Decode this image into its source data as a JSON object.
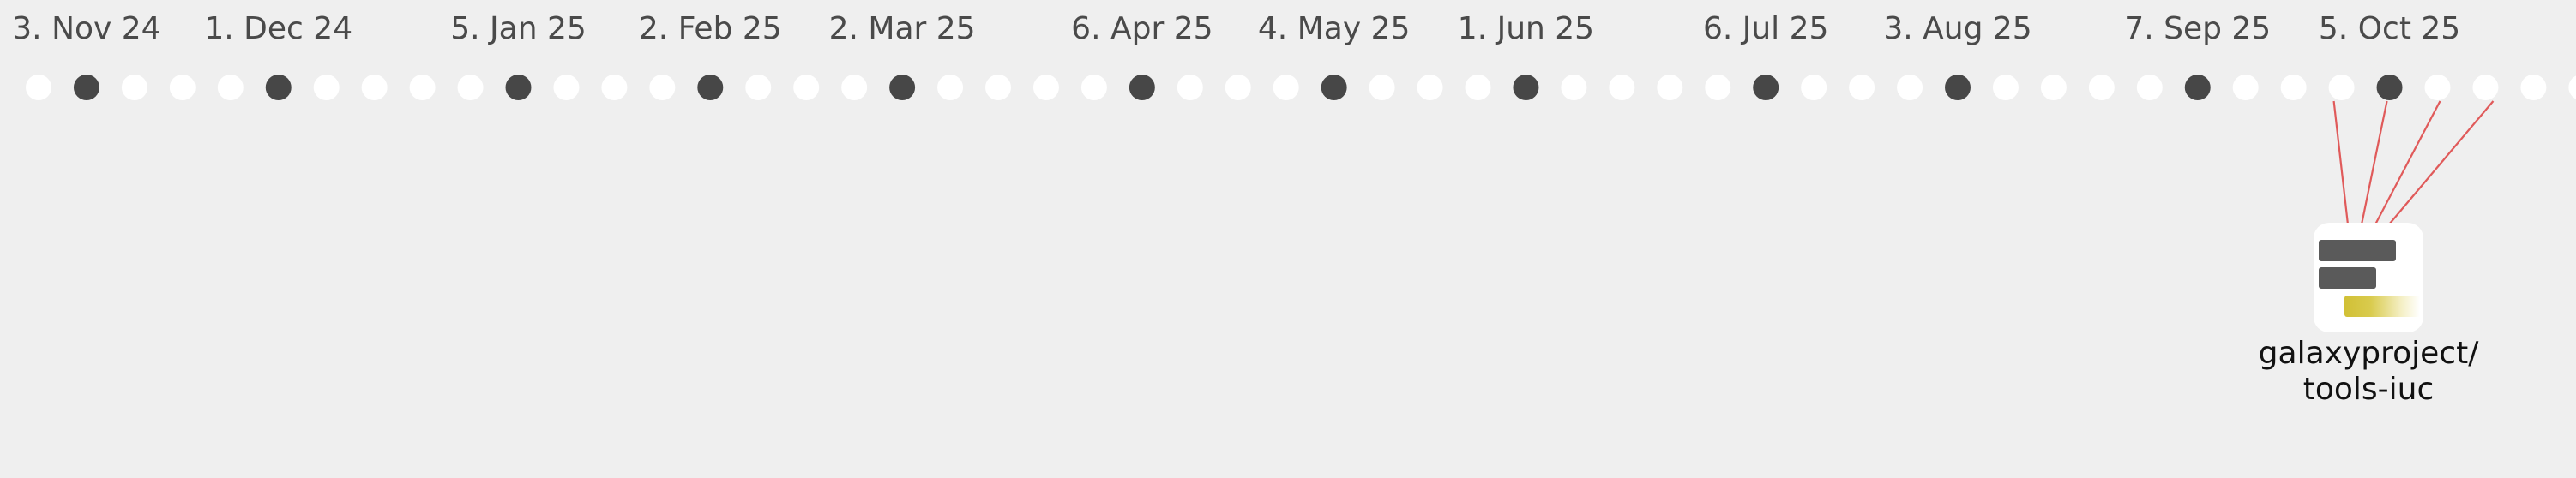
{
  "timeline": {
    "date_labels": [
      "3. Nov 24",
      "1. Dec 24",
      "5. Jan 25",
      "2. Feb 25",
      "2. Mar 25",
      "6. Apr 25",
      "4. May 25",
      "1. Jun 25",
      "6. Jul 25",
      "3. Aug 25",
      "7. Sep 25",
      "5. Oct 25"
    ],
    "week_count": 54,
    "highlighted_weeks": [
      1,
      5,
      10,
      14,
      18,
      23,
      27,
      31,
      36,
      40,
      45,
      49
    ],
    "connected_weeks": [
      48,
      49,
      50,
      51
    ],
    "dot_color_default": "#ffffff",
    "dot_color_highlight": "#474747",
    "connector_color": "#e05a5a"
  },
  "repository": {
    "name_line1": "galaxyproject/",
    "name_line2": "tools-iuc",
    "icon": "repository-activity-icon"
  }
}
